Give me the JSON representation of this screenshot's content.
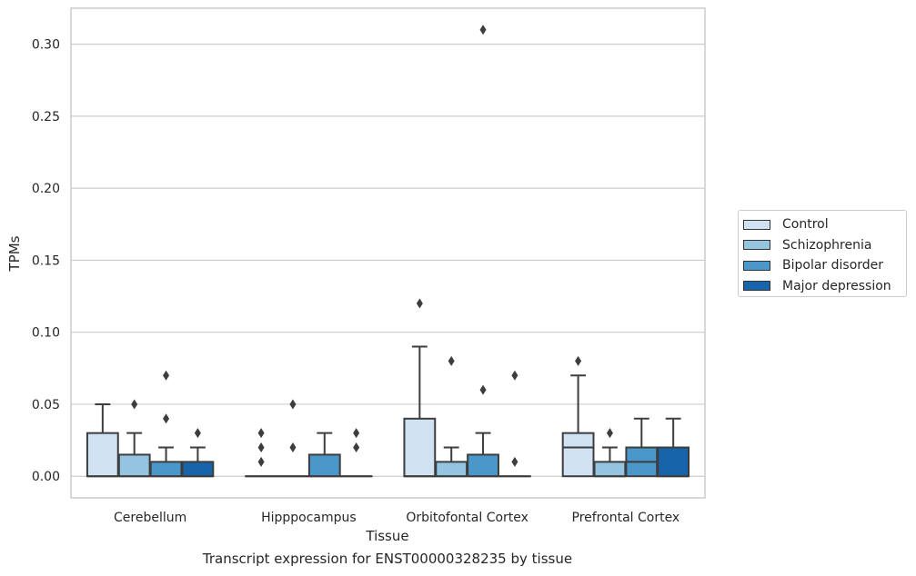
{
  "chart_data": {
    "type": "box",
    "caption": "Transcript expression for ENST00000328235 by tissue",
    "xlabel": "Tissue",
    "ylabel": "TPMs",
    "ylim": [
      -0.015,
      0.325
    ],
    "yticks": [
      "0.00",
      "0.05",
      "0.10",
      "0.15",
      "0.20",
      "0.25",
      "0.30"
    ],
    "grid": true,
    "legend_position": "right",
    "categories": [
      "Cerebellum",
      "Hipppocampus",
      "Orbitofontal Cortex",
      "Prefrontal Cortex"
    ],
    "series": [
      {
        "name": "Control",
        "color": "#d0e1f2",
        "boxes": [
          {
            "q1": 0.0,
            "median": 0.0,
            "q3": 0.03,
            "whisker_low": 0.0,
            "whisker_high": 0.05,
            "outliers": []
          },
          {
            "q1": 0.0,
            "median": 0.0,
            "q3": 0.0,
            "whisker_low": 0.0,
            "whisker_high": 0.0,
            "outliers": [
              0.01,
              0.02,
              0.03
            ]
          },
          {
            "q1": 0.0,
            "median": 0.0,
            "q3": 0.04,
            "whisker_low": 0.0,
            "whisker_high": 0.09,
            "outliers": [
              0.12
            ]
          },
          {
            "q1": 0.0,
            "median": 0.02,
            "q3": 0.03,
            "whisker_low": 0.0,
            "whisker_high": 0.07,
            "outliers": [
              0.08
            ]
          }
        ]
      },
      {
        "name": "Schizophrenia",
        "color": "#94c4df",
        "boxes": [
          {
            "q1": 0.0,
            "median": 0.0,
            "q3": 0.015,
            "whisker_low": 0.0,
            "whisker_high": 0.03,
            "outliers": [
              0.05
            ]
          },
          {
            "q1": 0.0,
            "median": 0.0,
            "q3": 0.0,
            "whisker_low": 0.0,
            "whisker_high": 0.0,
            "outliers": [
              0.02,
              0.05
            ]
          },
          {
            "q1": 0.0,
            "median": 0.0,
            "q3": 0.01,
            "whisker_low": 0.0,
            "whisker_high": 0.02,
            "outliers": [
              0.08
            ]
          },
          {
            "q1": 0.0,
            "median": 0.0,
            "q3": 0.01,
            "whisker_low": 0.0,
            "whisker_high": 0.02,
            "outliers": [
              0.03
            ]
          }
        ]
      },
      {
        "name": "Bipolar disorder",
        "color": "#4a98c9",
        "boxes": [
          {
            "q1": 0.0,
            "median": 0.0,
            "q3": 0.01,
            "whisker_low": 0.0,
            "whisker_high": 0.02,
            "outliers": [
              0.04,
              0.07
            ]
          },
          {
            "q1": 0.0,
            "median": 0.0,
            "q3": 0.015,
            "whisker_low": 0.0,
            "whisker_high": 0.03,
            "outliers": []
          },
          {
            "q1": 0.0,
            "median": 0.0,
            "q3": 0.015,
            "whisker_low": 0.0,
            "whisker_high": 0.03,
            "outliers": [
              0.06,
              0.31
            ]
          },
          {
            "q1": 0.0,
            "median": 0.01,
            "q3": 0.02,
            "whisker_low": 0.0,
            "whisker_high": 0.04,
            "outliers": []
          }
        ]
      },
      {
        "name": "Major depression",
        "color": "#1764ab",
        "boxes": [
          {
            "q1": 0.0,
            "median": 0.0,
            "q3": 0.01,
            "whisker_low": 0.0,
            "whisker_high": 0.02,
            "outliers": [
              0.03
            ]
          },
          {
            "q1": 0.0,
            "median": 0.0,
            "q3": 0.0,
            "whisker_low": 0.0,
            "whisker_high": 0.0,
            "outliers": [
              0.02,
              0.03
            ]
          },
          {
            "q1": 0.0,
            "median": 0.0,
            "q3": 0.0,
            "whisker_low": 0.0,
            "whisker_high": 0.0,
            "outliers": [
              0.01,
              0.07
            ]
          },
          {
            "q1": 0.0,
            "median": 0.0,
            "q3": 0.02,
            "whisker_low": 0.0,
            "whisker_high": 0.04,
            "outliers": []
          }
        ]
      }
    ]
  }
}
